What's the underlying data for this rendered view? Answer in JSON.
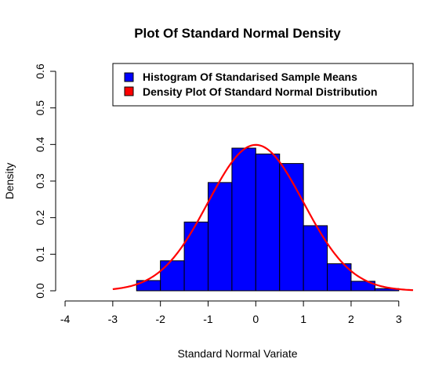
{
  "chart_data": {
    "type": "bar",
    "title": "Plot Of Standard Normal Density",
    "xlabel": "Standard Normal Variate",
    "ylabel": "Density",
    "xlim": [
      -4.05,
      3.3
    ],
    "ylim": [
      0,
      0.6
    ],
    "x_ticks": [
      -4,
      -3,
      -2,
      -1,
      0,
      1,
      2,
      3
    ],
    "x_tick_labels": [
      "-4",
      "-3",
      "-2",
      "-1",
      "0",
      "1",
      "2",
      "3"
    ],
    "y_ticks": [
      0,
      0.1,
      0.2,
      0.3,
      0.4,
      0.5,
      0.6
    ],
    "y_tick_labels": [
      "0.0",
      "0.1",
      "0.2",
      "0.3",
      "0.4",
      "0.5",
      "0.6"
    ],
    "grid": false,
    "legend_position": "top-right",
    "series": [
      {
        "name": "Histogram Of Standarised Sample Means",
        "type": "histogram",
        "color": "#0000FF",
        "bins": [
          {
            "x0": -4.0,
            "x1": -3.5,
            "density": 0.0
          },
          {
            "x0": -3.5,
            "x1": -3.0,
            "density": 0.0
          },
          {
            "x0": -3.0,
            "x1": -2.5,
            "density": 0.0
          },
          {
            "x0": -2.5,
            "x1": -2.0,
            "density": 0.028
          },
          {
            "x0": -2.0,
            "x1": -1.5,
            "density": 0.082
          },
          {
            "x0": -1.5,
            "x1": -1.0,
            "density": 0.188
          },
          {
            "x0": -1.0,
            "x1": -0.5,
            "density": 0.296
          },
          {
            "x0": -0.5,
            "x1": 0.0,
            "density": 0.39
          },
          {
            "x0": 0.0,
            "x1": 0.5,
            "density": 0.374
          },
          {
            "x0": 0.5,
            "x1": 1.0,
            "density": 0.348
          },
          {
            "x0": 1.0,
            "x1": 1.5,
            "density": 0.178
          },
          {
            "x0": 1.5,
            "x1": 2.0,
            "density": 0.074
          },
          {
            "x0": 2.0,
            "x1": 2.5,
            "density": 0.026
          },
          {
            "x0": 2.5,
            "x1": 3.0,
            "density": 0.006
          }
        ]
      },
      {
        "name": "Density Plot Of Standard Normal Distribution",
        "type": "line",
        "color": "#FF0000",
        "function": "standard_normal_pdf",
        "x_range": [
          -3.0,
          3.3
        ]
      }
    ]
  }
}
